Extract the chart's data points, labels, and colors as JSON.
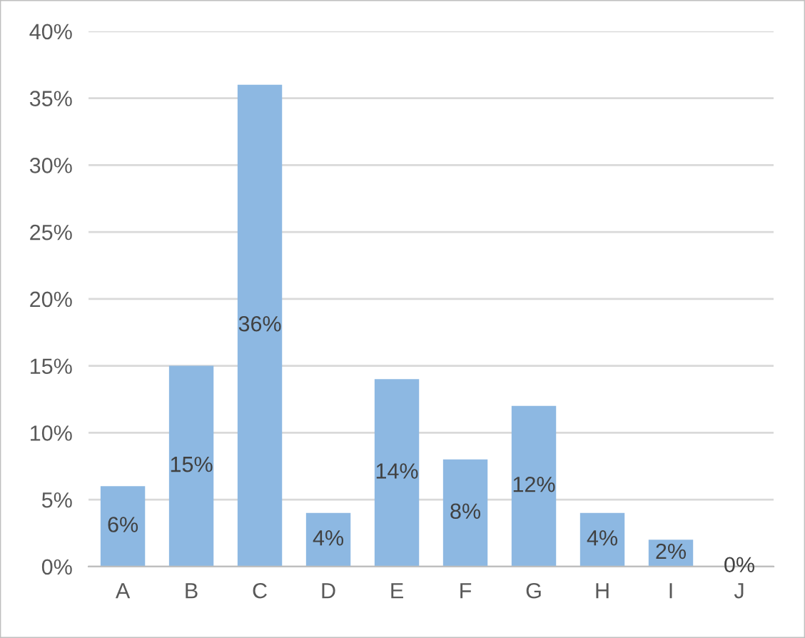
{
  "chart_data": {
    "type": "bar",
    "categories": [
      "A",
      "B",
      "C",
      "D",
      "E",
      "F",
      "G",
      "H",
      "I",
      "J"
    ],
    "values": [
      6,
      15,
      36,
      4,
      14,
      8,
      12,
      4,
      2,
      0
    ],
    "value_labels": [
      "6%",
      "15%",
      "36%",
      "4%",
      "14%",
      "8%",
      "12%",
      "4%",
      "2%",
      "0%"
    ],
    "color": "#8db8e2",
    "ylim": [
      0,
      40
    ],
    "yticks": [
      {
        "value": 0,
        "label": "0%"
      },
      {
        "value": 5,
        "label": "5%"
      },
      {
        "value": 10,
        "label": "10%"
      },
      {
        "value": 15,
        "label": "15%"
      },
      {
        "value": 20,
        "label": "20%"
      },
      {
        "value": 25,
        "label": "25%"
      },
      {
        "value": 30,
        "label": "30%"
      },
      {
        "value": 35,
        "label": "35%"
      },
      {
        "value": 40,
        "label": "40%"
      }
    ],
    "grid": "y"
  }
}
